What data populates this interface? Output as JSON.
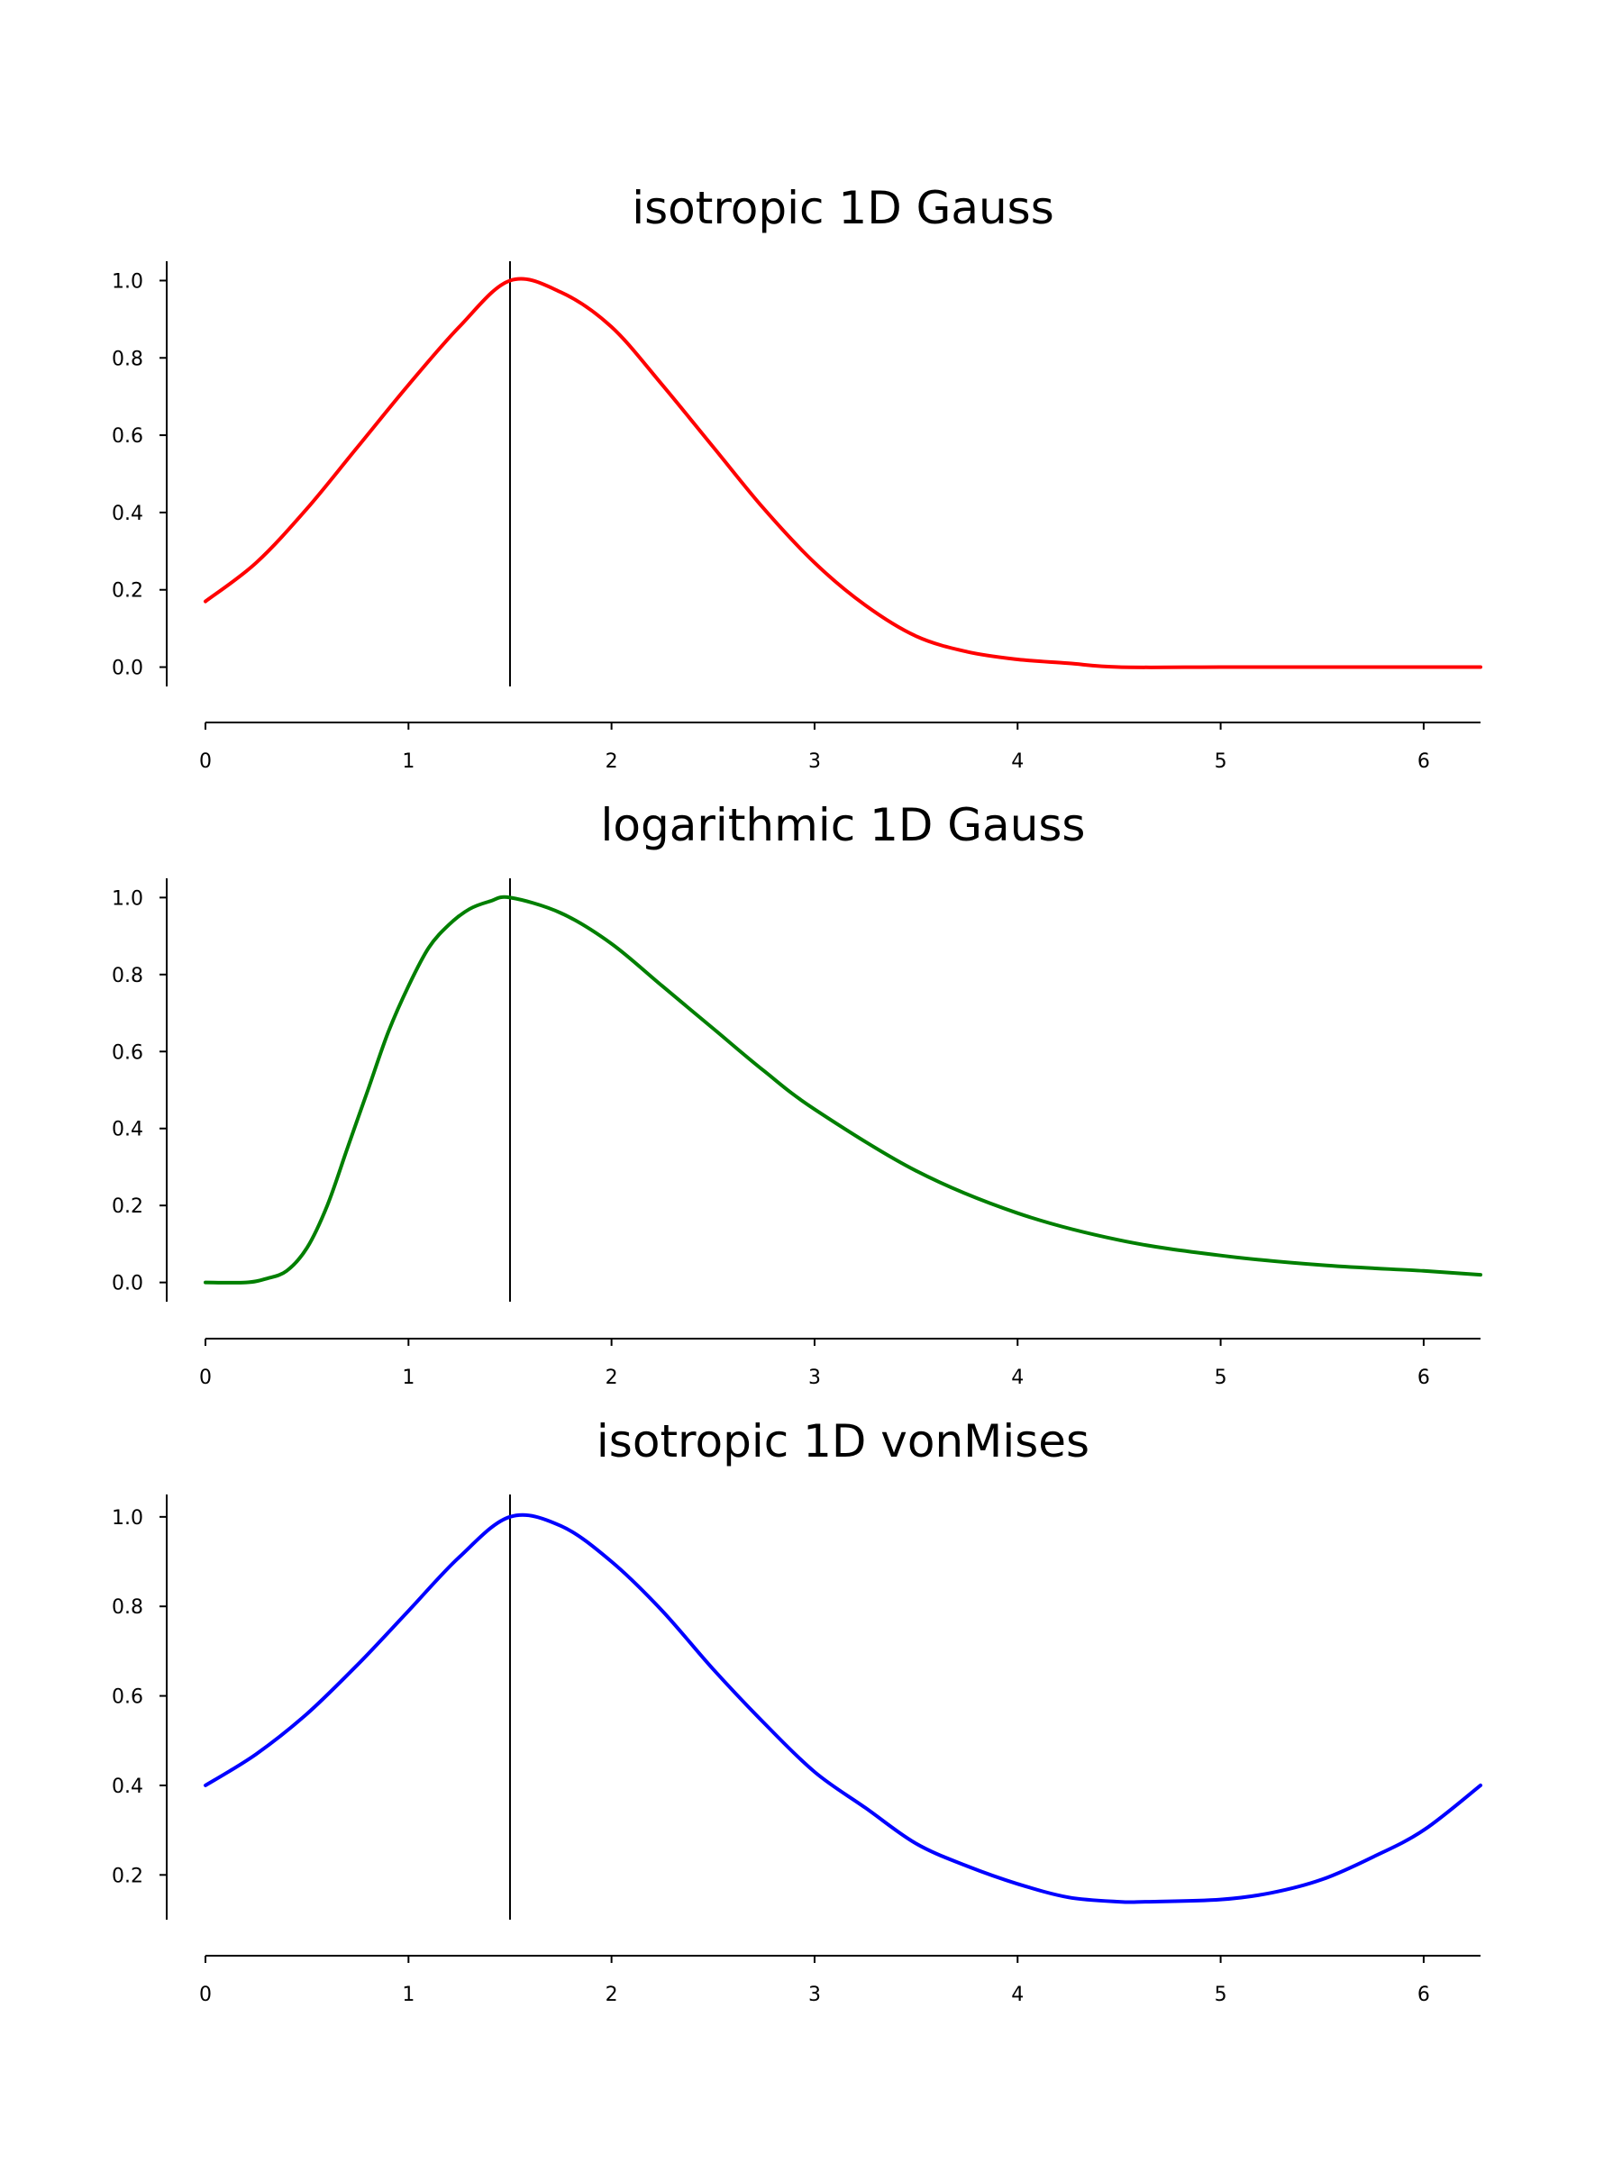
{
  "figure": {
    "chart_data": [
      {
        "type": "line",
        "title": "isotropic 1D Gauss",
        "xlim": [
          0,
          6.28
        ],
        "ylim": [
          -0.05,
          1.05
        ],
        "x_ticks": [
          0,
          1,
          2,
          3,
          4,
          5,
          6
        ],
        "y_ticks": [
          0.0,
          0.2,
          0.4,
          0.6,
          0.8,
          1.0
        ],
        "x_tick_labels": [
          "0",
          "1",
          "2",
          "3",
          "4",
          "5",
          "6"
        ],
        "y_tick_labels": [
          "0.0",
          "0.2",
          "0.4",
          "0.6",
          "0.8",
          "1.0"
        ],
        "vertical_line_x": 1.5,
        "grid": false,
        "series": [
          {
            "color": "#ff0000",
            "x": [
              0,
              0.25,
              0.5,
              0.75,
              1.0,
              1.25,
              1.5,
              1.75,
              2.0,
              2.25,
              2.5,
              2.75,
              3.0,
              3.25,
              3.5,
              3.75,
              4.0,
              4.25,
              4.5,
              5.0,
              5.5,
              6.0,
              6.28
            ],
            "y": [
              0.17,
              0.27,
              0.41,
              0.57,
              0.73,
              0.88,
              1.0,
              0.97,
              0.88,
              0.73,
              0.57,
              0.41,
              0.27,
              0.16,
              0.08,
              0.04,
              0.02,
              0.01,
              0.0,
              0.0,
              0.0,
              0.0,
              0.0
            ]
          }
        ]
      },
      {
        "type": "line",
        "title": "logarithmic 1D Gauss",
        "xlim": [
          0,
          6.28
        ],
        "ylim": [
          -0.05,
          1.05
        ],
        "x_ticks": [
          0,
          1,
          2,
          3,
          4,
          5,
          6
        ],
        "y_ticks": [
          0.0,
          0.2,
          0.4,
          0.6,
          0.8,
          1.0
        ],
        "x_tick_labels": [
          "0",
          "1",
          "2",
          "3",
          "4",
          "5",
          "6"
        ],
        "y_tick_labels": [
          "0.0",
          "0.2",
          "0.4",
          "0.6",
          "0.8",
          "1.0"
        ],
        "vertical_line_x": 1.5,
        "grid": false,
        "series": [
          {
            "color": "#007f00",
            "x": [
              0,
              0.2,
              0.3,
              0.4,
              0.5,
              0.6,
              0.7,
              0.8,
              0.9,
              1.0,
              1.1,
              1.2,
              1.3,
              1.4,
              1.5,
              1.75,
              2.0,
              2.25,
              2.5,
              2.75,
              3.0,
              3.5,
              4.0,
              4.5,
              5.0,
              5.5,
              6.0,
              6.28
            ],
            "y": [
              0.0,
              0.0,
              0.01,
              0.03,
              0.09,
              0.2,
              0.35,
              0.5,
              0.65,
              0.77,
              0.87,
              0.93,
              0.97,
              0.99,
              1.0,
              0.96,
              0.88,
              0.77,
              0.66,
              0.55,
              0.45,
              0.29,
              0.18,
              0.11,
              0.07,
              0.045,
              0.03,
              0.02
            ]
          }
        ]
      },
      {
        "type": "line",
        "title": "isotropic 1D vonMises",
        "xlim": [
          0,
          6.28
        ],
        "ylim": [
          0.1,
          1.05
        ],
        "x_ticks": [
          0,
          1,
          2,
          3,
          4,
          5,
          6
        ],
        "y_ticks": [
          0.2,
          0.4,
          0.6,
          0.8,
          1.0
        ],
        "x_tick_labels": [
          "0",
          "1",
          "2",
          "3",
          "4",
          "5",
          "6"
        ],
        "y_tick_labels": [
          "0.2",
          "0.4",
          "0.6",
          "0.8",
          "1.0"
        ],
        "vertical_line_x": 1.5,
        "grid": false,
        "series": [
          {
            "color": "#0000ff",
            "x": [
              0,
              0.25,
              0.5,
              0.75,
              1.0,
              1.25,
              1.5,
              1.75,
              2.0,
              2.25,
              2.5,
              2.75,
              3.0,
              3.25,
              3.5,
              3.75,
              4.0,
              4.25,
              4.5,
              4.64,
              5.0,
              5.25,
              5.5,
              5.75,
              6.0,
              6.28
            ],
            "y": [
              0.4,
              0.47,
              0.56,
              0.67,
              0.79,
              0.91,
              1.0,
              0.98,
              0.9,
              0.79,
              0.66,
              0.54,
              0.43,
              0.35,
              0.27,
              0.22,
              0.18,
              0.15,
              0.14,
              0.14,
              0.145,
              0.16,
              0.19,
              0.24,
              0.3,
              0.4
            ]
          }
        ]
      }
    ]
  }
}
